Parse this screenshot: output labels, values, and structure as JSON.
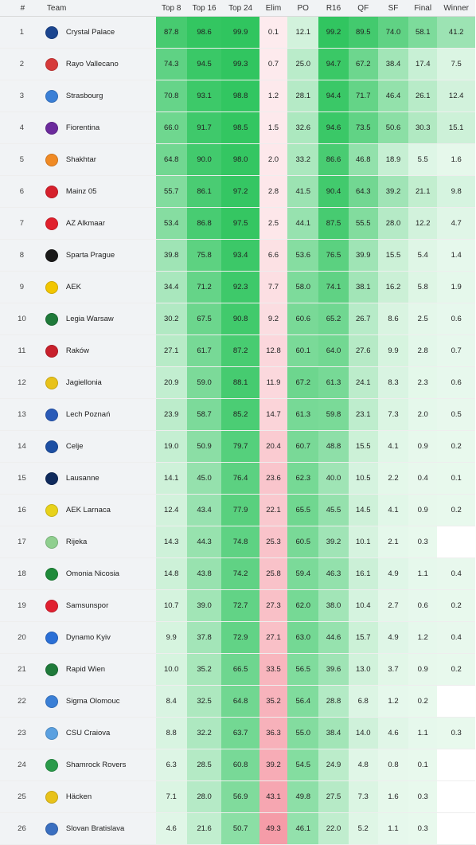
{
  "columns": [
    "#",
    "Team",
    "Top 8",
    "Top 16",
    "Top 24",
    "Elim",
    "PO",
    "R16",
    "QF",
    "SF",
    "Final",
    "Winner"
  ],
  "colors": {
    "green": "#1ec051",
    "red": "#eb3b52",
    "header_bg": "#f1f3f5"
  },
  "rows": [
    {
      "rank": "1",
      "team": "Crystal Palace",
      "badge": "#1b458f",
      "cells": [
        "87.8",
        "98.6",
        "99.9",
        "0.1",
        "12.1",
        "99.2",
        "89.5",
        "74.0",
        "58.1",
        "41.2"
      ]
    },
    {
      "rank": "2",
      "team": "Rayo Vallecano",
      "badge": "#d63a3a",
      "cells": [
        "74.3",
        "94.5",
        "99.3",
        "0.7",
        "25.0",
        "94.7",
        "67.2",
        "38.4",
        "17.4",
        "7.5"
      ]
    },
    {
      "rank": "3",
      "team": "Strasbourg",
      "badge": "#3a7fd6",
      "cells": [
        "70.8",
        "93.1",
        "98.8",
        "1.2",
        "28.1",
        "94.4",
        "71.7",
        "46.4",
        "26.1",
        "12.4"
      ]
    },
    {
      "rank": "4",
      "team": "Fiorentina",
      "badge": "#6b2a9c",
      "cells": [
        "66.0",
        "91.7",
        "98.5",
        "1.5",
        "32.6",
        "94.6",
        "73.5",
        "50.6",
        "30.3",
        "15.1"
      ]
    },
    {
      "rank": "5",
      "team": "Shakhtar",
      "badge": "#f08a24",
      "cells": [
        "64.8",
        "90.0",
        "98.0",
        "2.0",
        "33.2",
        "86.6",
        "46.8",
        "18.9",
        "5.5",
        "1.6"
      ]
    },
    {
      "rank": "6",
      "team": "Mainz 05",
      "badge": "#d6202c",
      "cells": [
        "55.7",
        "86.1",
        "97.2",
        "2.8",
        "41.5",
        "90.4",
        "64.3",
        "39.2",
        "21.1",
        "9.8"
      ]
    },
    {
      "rank": "7",
      "team": "AZ Alkmaar",
      "badge": "#e0202c",
      "cells": [
        "53.4",
        "86.8",
        "97.5",
        "2.5",
        "44.1",
        "87.5",
        "55.5",
        "28.0",
        "12.2",
        "4.7"
      ]
    },
    {
      "rank": "8",
      "team": "Sparta Prague",
      "badge": "#1a1a1a",
      "cells": [
        "39.8",
        "75.8",
        "93.4",
        "6.6",
        "53.6",
        "76.5",
        "39.9",
        "15.5",
        "5.4",
        "1.4"
      ]
    },
    {
      "rank": "9",
      "team": "AEK",
      "badge": "#f2c600",
      "cells": [
        "34.4",
        "71.2",
        "92.3",
        "7.7",
        "58.0",
        "74.1",
        "38.1",
        "16.2",
        "5.8",
        "1.9"
      ]
    },
    {
      "rank": "10",
      "team": "Legia Warsaw",
      "badge": "#1f7a3a",
      "cells": [
        "30.2",
        "67.5",
        "90.8",
        "9.2",
        "60.6",
        "65.2",
        "26.7",
        "8.6",
        "2.5",
        "0.6"
      ]
    },
    {
      "rank": "11",
      "team": "Raków",
      "badge": "#c8202c",
      "cells": [
        "27.1",
        "61.7",
        "87.2",
        "12.8",
        "60.1",
        "64.0",
        "27.6",
        "9.9",
        "2.8",
        "0.7"
      ]
    },
    {
      "rank": "12",
      "team": "Jagiellonia",
      "badge": "#e8c21a",
      "cells": [
        "20.9",
        "59.0",
        "88.1",
        "11.9",
        "67.2",
        "61.3",
        "24.1",
        "8.3",
        "2.3",
        "0.6"
      ]
    },
    {
      "rank": "13",
      "team": "Lech Poznań",
      "badge": "#2a5bb8",
      "cells": [
        "23.9",
        "58.7",
        "85.2",
        "14.7",
        "61.3",
        "59.8",
        "23.1",
        "7.3",
        "2.0",
        "0.5"
      ]
    },
    {
      "rank": "14",
      "team": "Celje",
      "badge": "#1d4fa3",
      "cells": [
        "19.0",
        "50.9",
        "79.7",
        "20.4",
        "60.7",
        "48.8",
        "15.5",
        "4.1",
        "0.9",
        "0.2"
      ]
    },
    {
      "rank": "15",
      "team": "Lausanne",
      "badge": "#0f2a5c",
      "cells": [
        "14.1",
        "45.0",
        "76.4",
        "23.6",
        "62.3",
        "40.0",
        "10.5",
        "2.2",
        "0.4",
        "0.1"
      ]
    },
    {
      "rank": "16",
      "team": "AEK Larnaca",
      "badge": "#e8d21a",
      "cells": [
        "12.4",
        "43.4",
        "77.9",
        "22.1",
        "65.5",
        "45.5",
        "14.5",
        "4.1",
        "0.9",
        "0.2"
      ]
    },
    {
      "rank": "17",
      "team": "Rijeka",
      "badge": "#8fcf8f",
      "cells": [
        "14.3",
        "44.3",
        "74.8",
        "25.3",
        "60.5",
        "39.2",
        "10.1",
        "2.1",
        "0.3",
        ""
      ]
    },
    {
      "rank": "18",
      "team": "Omonia Nicosia",
      "badge": "#1f8a3a",
      "cells": [
        "14.8",
        "43.8",
        "74.2",
        "25.8",
        "59.4",
        "46.3",
        "16.1",
        "4.9",
        "1.1",
        "0.4"
      ]
    },
    {
      "rank": "19",
      "team": "Samsunspor",
      "badge": "#e02030",
      "cells": [
        "10.7",
        "39.0",
        "72.7",
        "27.3",
        "62.0",
        "38.0",
        "10.4",
        "2.7",
        "0.6",
        "0.2"
      ]
    },
    {
      "rank": "20",
      "team": "Dynamo Kyiv",
      "badge": "#2a6fd6",
      "cells": [
        "9.9",
        "37.8",
        "72.9",
        "27.1",
        "63.0",
        "44.6",
        "15.7",
        "4.9",
        "1.2",
        "0.4"
      ]
    },
    {
      "rank": "21",
      "team": "Rapid Wien",
      "badge": "#1f7a3a",
      "cells": [
        "10.0",
        "35.2",
        "66.5",
        "33.5",
        "56.5",
        "39.6",
        "13.0",
        "3.7",
        "0.9",
        "0.2"
      ]
    },
    {
      "rank": "22",
      "team": "Sigma Olomouc",
      "badge": "#3a7fd6",
      "cells": [
        "8.4",
        "32.5",
        "64.8",
        "35.2",
        "56.4",
        "28.8",
        "6.8",
        "1.2",
        "0.2",
        ""
      ]
    },
    {
      "rank": "23",
      "team": "CSU Craiova",
      "badge": "#5aa0e0",
      "cells": [
        "8.8",
        "32.2",
        "63.7",
        "36.3",
        "55.0",
        "38.4",
        "14.0",
        "4.6",
        "1.1",
        "0.3"
      ]
    },
    {
      "rank": "24",
      "team": "Shamrock Rovers",
      "badge": "#2a9a4a",
      "cells": [
        "6.3",
        "28.5",
        "60.8",
        "39.2",
        "54.5",
        "24.9",
        "4.8",
        "0.8",
        "0.1",
        ""
      ]
    },
    {
      "rank": "25",
      "team": "Häcken",
      "badge": "#e8c21a",
      "cells": [
        "7.1",
        "28.0",
        "56.9",
        "43.1",
        "49.8",
        "27.5",
        "7.3",
        "1.6",
        "0.3",
        ""
      ]
    },
    {
      "rank": "26",
      "team": "Slovan Bratislava",
      "badge": "#3a6fc0",
      "cells": [
        "4.6",
        "21.6",
        "50.7",
        "49.3",
        "46.1",
        "22.0",
        "5.2",
        "1.1",
        "0.3",
        ""
      ]
    }
  ]
}
